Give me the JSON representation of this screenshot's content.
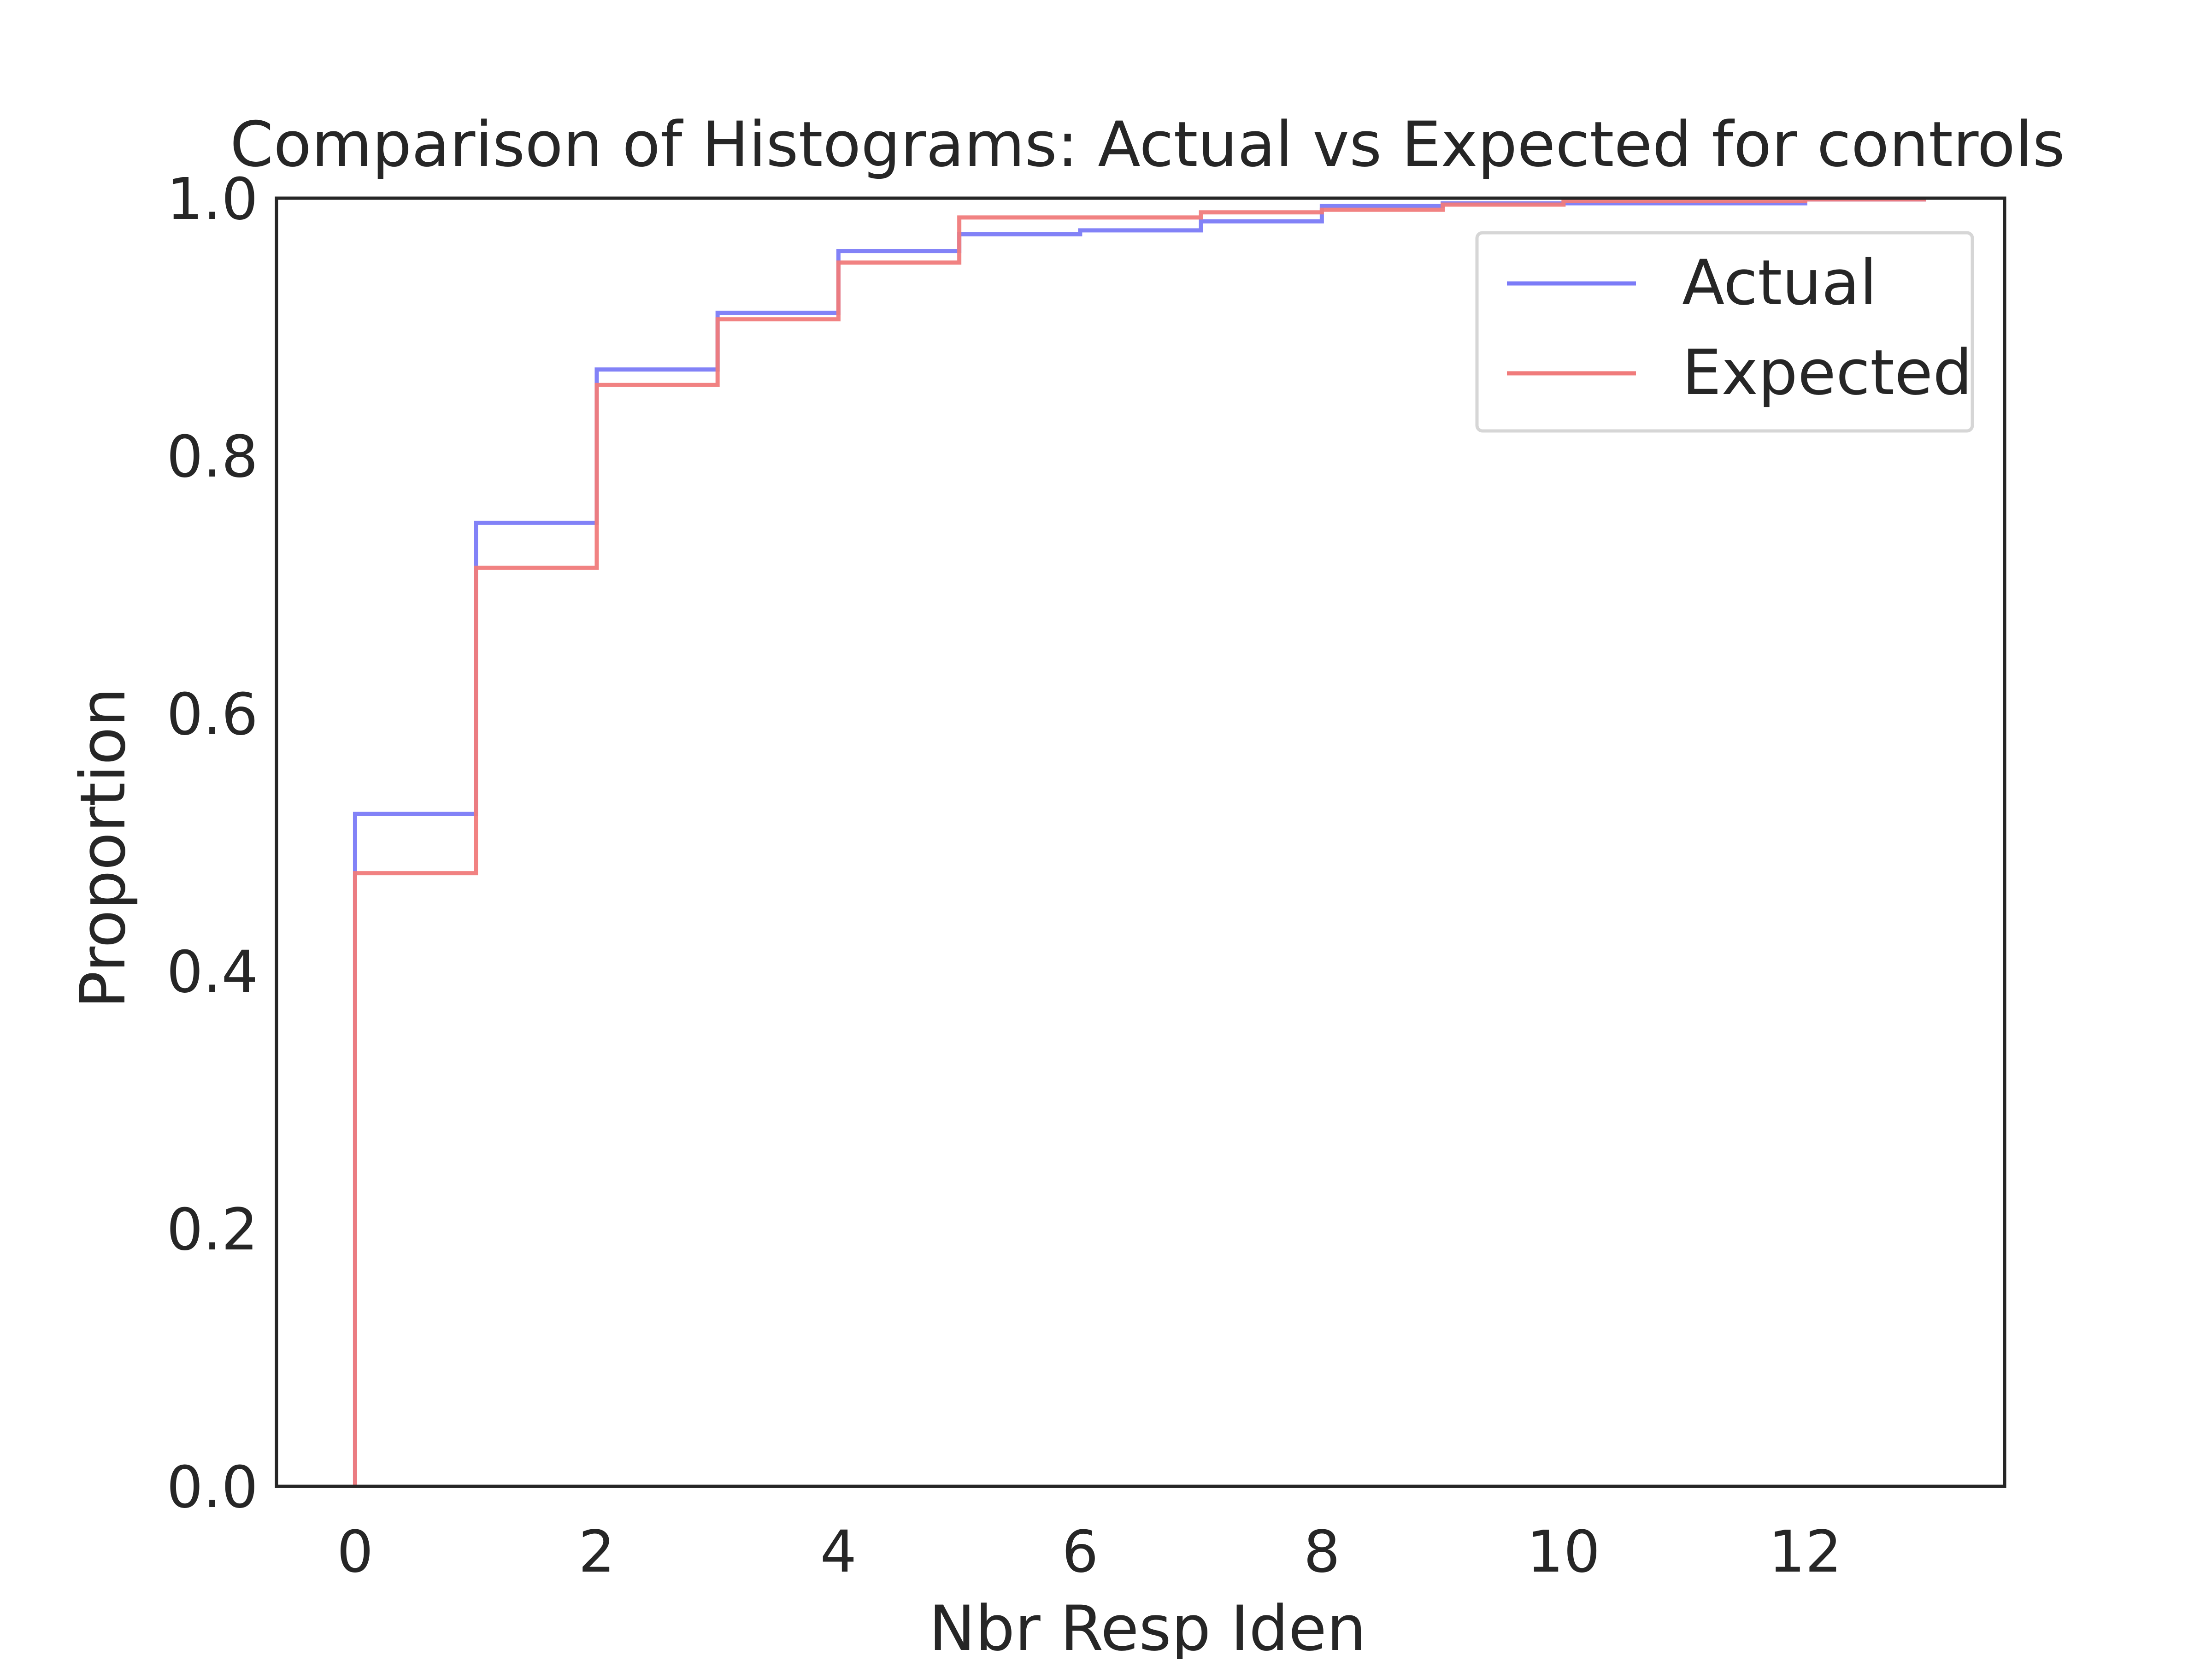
{
  "chart_data": {
    "type": "line",
    "title": "Comparison of Histograms: Actual vs Expected for controls",
    "xlabel": "Nbr Resp Iden",
    "ylabel": "Proportion",
    "xlim": [
      -0.65,
      13.65
    ],
    "ylim": [
      0.0,
      1.0
    ],
    "x_ticks": [
      0,
      2,
      4,
      6,
      8,
      10,
      12
    ],
    "y_ticks": [
      0.0,
      0.2,
      0.4,
      0.6,
      0.8,
      1.0
    ],
    "grid": false,
    "legend_position": "upper right",
    "series": [
      {
        "name": "Actual",
        "color": "#7b7bf7",
        "x": [
          0,
          1,
          2,
          3,
          4,
          5,
          6,
          7,
          8,
          9,
          10,
          11,
          12,
          13
        ],
        "values": [
          0.522,
          0.748,
          0.867,
          0.911,
          0.959,
          0.972,
          0.975,
          0.982,
          0.994,
          0.996,
          0.996,
          0.996,
          0.999,
          0.999
        ]
      },
      {
        "name": "Expected",
        "color": "#f07b7b",
        "x": [
          0,
          1,
          2,
          3,
          4,
          5,
          6,
          7,
          8,
          9,
          10,
          11,
          12,
          13
        ],
        "values": [
          0.476,
          0.713,
          0.855,
          0.906,
          0.95,
          0.985,
          0.985,
          0.989,
          0.991,
          0.995,
          0.998,
          0.998,
          0.999,
          0.999
        ]
      }
    ]
  }
}
